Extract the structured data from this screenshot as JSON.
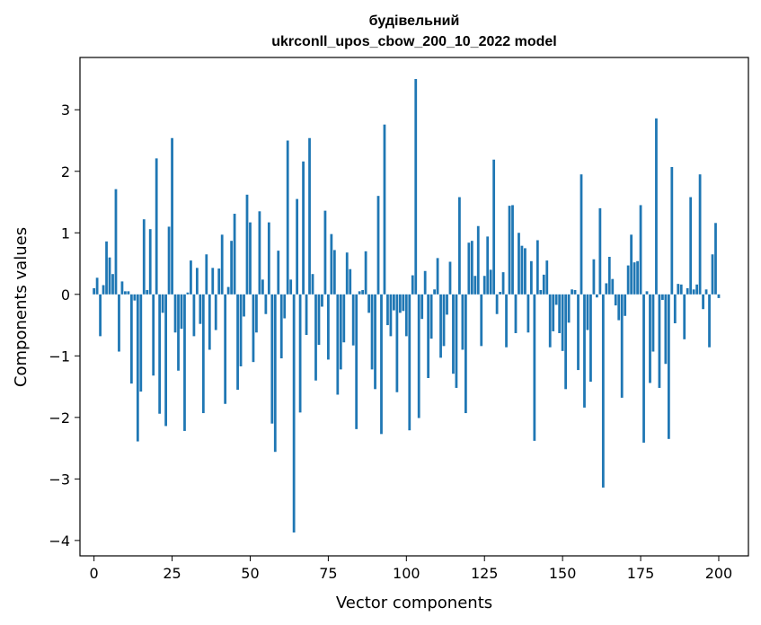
{
  "chart_data": {
    "type": "bar",
    "title_line1": "будівельний",
    "title_line2": "ukrconll_upos_cbow_200_10_2022 model",
    "xlabel": "Vector components",
    "ylabel": "Components values",
    "xlim": [
      -4.5,
      209.5
    ],
    "ylim": [
      -4.25,
      3.85
    ],
    "x_ticks": [
      0,
      25,
      50,
      75,
      100,
      125,
      150,
      175,
      200
    ],
    "x_tick_labels": [
      "0",
      "25",
      "50",
      "75",
      "100",
      "125",
      "150",
      "175",
      "200"
    ],
    "y_ticks": [
      -4,
      -3,
      -2,
      -1,
      0,
      1,
      2,
      3
    ],
    "y_tick_labels": [
      "−4",
      "−3",
      "−2",
      "−1",
      "0",
      "1",
      "2",
      "3"
    ],
    "bar_color": "#1f77b4",
    "values": [
      0.1,
      0.27,
      -0.68,
      0.15,
      0.86,
      0.6,
      0.33,
      1.71,
      -0.93,
      0.21,
      0.05,
      0.05,
      -1.45,
      -0.1,
      -2.39,
      -1.58,
      1.22,
      0.07,
      1.06,
      -1.32,
      2.21,
      -1.94,
      -0.3,
      -2.14,
      1.1,
      2.54,
      -0.62,
      -1.24,
      -0.56,
      -2.22,
      0.03,
      0.55,
      -0.68,
      0.43,
      -0.48,
      -1.93,
      0.65,
      -0.9,
      0.43,
      -0.58,
      0.42,
      0.97,
      -1.78,
      0.12,
      0.87,
      1.31,
      -1.55,
      -1.17,
      -0.36,
      1.62,
      1.17,
      -1.1,
      -0.62,
      1.35,
      0.24,
      -0.32,
      1.17,
      -2.1,
      -2.56,
      0.71,
      -1.04,
      -0.39,
      2.5,
      0.24,
      -3.87,
      1.55,
      -1.92,
      2.16,
      -0.66,
      2.54,
      0.33,
      -1.4,
      -0.82,
      -0.2,
      1.36,
      -1.06,
      0.98,
      0.72,
      -1.63,
      -1.22,
      -0.78,
      0.68,
      0.41,
      -0.83,
      -2.19,
      0.05,
      0.07,
      0.7,
      -0.3,
      -1.22,
      -1.54,
      1.6,
      -2.27,
      2.76,
      -0.5,
      -0.68,
      -0.26,
      -1.59,
      -0.3,
      -0.27,
      -0.68,
      -2.21,
      0.31,
      3.5,
      -2.01,
      -0.4,
      0.38,
      -1.36,
      -0.72,
      0.08,
      0.59,
      -1.03,
      -0.84,
      -0.33,
      0.53,
      -1.29,
      -1.52,
      1.58,
      -0.9,
      -1.93,
      0.84,
      0.87,
      0.3,
      1.11,
      -0.84,
      0.3,
      0.94,
      0.4,
      2.19,
      -0.32,
      0.04,
      0.36,
      -0.86,
      1.44,
      1.45,
      -0.63,
      1.0,
      0.79,
      0.75,
      -0.62,
      0.54,
      -2.38,
      0.88,
      0.07,
      0.32,
      0.55,
      -0.86,
      -0.6,
      -0.17,
      -0.63,
      -0.92,
      -1.54,
      -0.46,
      0.08,
      0.07,
      -1.23,
      1.95,
      -1.84,
      -0.58,
      -1.42,
      0.57,
      -0.05,
      1.4,
      -3.14,
      0.18,
      0.61,
      0.25,
      -0.18,
      -0.42,
      -1.68,
      -0.35,
      0.47,
      0.97,
      0.52,
      0.54,
      1.45,
      -2.41,
      0.05,
      -1.44,
      -0.93,
      2.86,
      -1.52,
      -0.09,
      -1.13,
      -2.35,
      2.07,
      -0.47,
      0.17,
      0.16,
      -0.73,
      0.1,
      1.58,
      0.08,
      0.16,
      1.95,
      -0.24,
      0.08,
      -0.86,
      0.65,
      1.16,
      -0.06
    ]
  }
}
